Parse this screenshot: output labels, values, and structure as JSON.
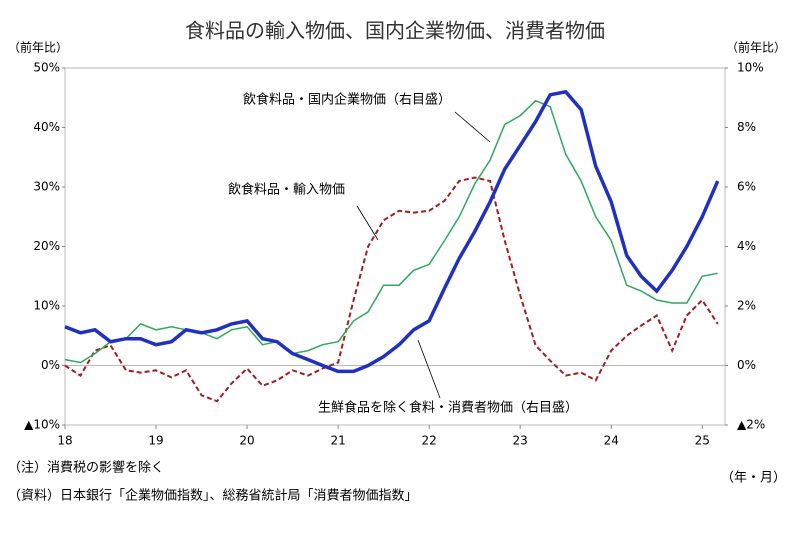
{
  "chart_data": {
    "type": "line",
    "title": "食料品の輸入物価、国内企業物価、消費者物価",
    "ylabel": "（前年比）",
    "y2label": "（前年比）",
    "xlabel": "（年・月）",
    "notes": [
      "（注）消費税の影響を除く",
      "（資料）日本銀行「企業物価指数」、総務省統計局「消費者物価指数」"
    ],
    "x": [
      18,
      18.17,
      18.33,
      18.5,
      18.67,
      18.83,
      19,
      19.17,
      19.33,
      19.5,
      19.67,
      19.83,
      20,
      20.17,
      20.33,
      20.5,
      20.67,
      20.83,
      21,
      21.17,
      21.33,
      21.5,
      21.67,
      21.83,
      22,
      22.17,
      22.33,
      22.5,
      22.67,
      22.83,
      23,
      23.17,
      23.33,
      23.5,
      23.67,
      23.83,
      24,
      24.17,
      24.33,
      24.5,
      24.67,
      24.83,
      25,
      25.17
    ],
    "xlim": [
      18,
      25.25
    ],
    "xticks": [
      18,
      19,
      20,
      21,
      22,
      23,
      24,
      25
    ],
    "ylim": [
      -10,
      50
    ],
    "yticks": [
      {
        "value": 50,
        "label": "50%"
      },
      {
        "value": 40,
        "label": "40%"
      },
      {
        "value": 30,
        "label": "30%"
      },
      {
        "value": 20,
        "label": "20%"
      },
      {
        "value": 10,
        "label": "10%"
      },
      {
        "value": 0,
        "label": "0%"
      },
      {
        "value": -10,
        "label": "▲10%"
      }
    ],
    "y2lim": [
      -2,
      10
    ],
    "y2ticks": [
      {
        "value": 10,
        "label": "10%"
      },
      {
        "value": 8,
        "label": "8%"
      },
      {
        "value": 6,
        "label": "6%"
      },
      {
        "value": 4,
        "label": "4%"
      },
      {
        "value": 2,
        "label": "2%"
      },
      {
        "value": 0,
        "label": "0%"
      },
      {
        "value": -2,
        "label": "▲2%"
      }
    ],
    "series": [
      {
        "name": "飲食料品・輸入物価",
        "color": "#a31d1d",
        "dashed": true,
        "values": [
          0,
          -1.7,
          2.5,
          3.4,
          -0.8,
          -1.2,
          -0.8,
          -2,
          -0.8,
          -5,
          -6,
          -3,
          -0.5,
          -3.4,
          -2.5,
          -0.8,
          -1.7,
          -0.5,
          0.5,
          11,
          20,
          24.4,
          26,
          25.7,
          26,
          27.7,
          31,
          31.6,
          31,
          21,
          11.8,
          3.4,
          0.8,
          -1.7,
          -1.2,
          -2.5,
          2.5,
          5,
          6.7,
          8.4,
          2.5,
          8.4,
          11,
          7
        ]
      },
      {
        "name": "飲食料品・国内企業物価（右目盛）",
        "color": "#2eaa5c",
        "axis": "y2",
        "values": [
          0.2,
          0.1,
          0.4,
          0.8,
          0.9,
          1.4,
          1.2,
          1.3,
          1.2,
          1.1,
          0.9,
          1.2,
          1.3,
          0.7,
          0.8,
          0.4,
          0.5,
          0.7,
          0.8,
          1.5,
          1.8,
          2.7,
          2.7,
          3.2,
          3.4,
          4.2,
          5.0,
          6.1,
          6.9,
          8.1,
          8.4,
          8.9,
          8.7,
          7.1,
          6.2,
          5.0,
          4.2,
          2.7,
          2.5,
          2.2,
          2.1,
          2.1,
          3.0,
          3.1
        ]
      },
      {
        "name": "生鮮食品を除く食料・消費者物価（右目盛）",
        "color": "#2030c0",
        "axis": "y2",
        "values": [
          1.3,
          1.1,
          1.2,
          0.8,
          0.9,
          0.9,
          0.7,
          0.8,
          1.2,
          1.1,
          1.2,
          1.4,
          1.5,
          0.9,
          0.8,
          0.4,
          0.2,
          0,
          -0.2,
          -0.2,
          0,
          0.3,
          0.7,
          1.2,
          1.5,
          2.6,
          3.6,
          4.5,
          5.5,
          6.6,
          7.4,
          8.2,
          9.1,
          9.2,
          8.6,
          6.7,
          5.5,
          3.7,
          3.0,
          2.5,
          3.2,
          4.0,
          5.0,
          6.2
        ]
      }
    ]
  }
}
